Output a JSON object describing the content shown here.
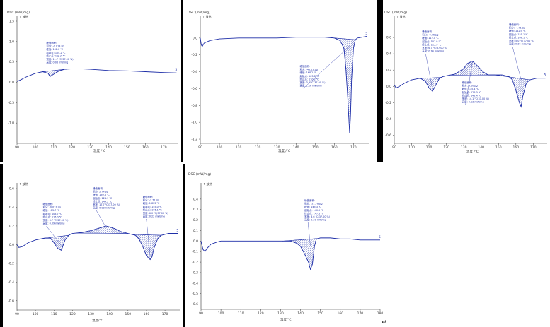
{
  "colors": {
    "curve": "#1f2fa8",
    "hatch": "#1f2fa8",
    "annotation": "#1f2fa8",
    "axis": "#333333",
    "frame": "#000000"
  },
  "footer": {
    "return_mark": "↵"
  },
  "chart_data": [
    {
      "type": "line",
      "title": "DSC (mW/mg)",
      "xlabel": "温度 /℃",
      "xlim": [
        90,
        178
      ],
      "ylim": [
        -1.5,
        1.5
      ],
      "xticks": [
        "90",
        "100",
        "110",
        "120",
        "130",
        "140",
        "150",
        "160",
        "170"
      ],
      "yticks": [
        "1.5",
        "1.0",
        "0.5",
        "0.0",
        "-0.5",
        "-1.0"
      ],
      "exo_label": "↑ 放热",
      "curve_label": "5",
      "series": [
        {
          "x": [
            90,
            92,
            95,
            100,
            104,
            107,
            108,
            110,
            113,
            116,
            120,
            125,
            130,
            140,
            150,
            160,
            170,
            177
          ],
          "y": [
            0.02,
            0.06,
            0.13,
            0.22,
            0.26,
            0.22,
            0.14,
            0.2,
            0.28,
            0.32,
            0.33,
            0.33,
            0.32,
            0.29,
            0.28,
            0.26,
            0.24,
            0.23
          ]
        }
      ],
      "peaks": [
        {
          "x0": 104,
          "x1": 117,
          "tip_x": 108
        }
      ],
      "annotations": [
        [
          "峰值面积:",
          "积分: -0.013 J/g",
          "峰值: 108.0 ℃",
          "起始点: 104.2 ℃",
          "终止点: 116.0 ℃",
          "宽度: 11.7 ℃(37.00 %)",
          "高度: 0.08 mW/mg"
        ]
      ],
      "annotation_x": [
        106
      ]
    },
    {
      "type": "line",
      "title": "DSC (mW/mg)",
      "xlabel": "温度 /℃",
      "xlim": [
        90,
        178
      ],
      "ylim": [
        -1.25,
        0.2
      ],
      "xticks": [
        "90",
        "100",
        "110",
        "120",
        "130",
        "140",
        "150",
        "160",
        "170"
      ],
      "yticks": [
        "0.0",
        "-0.2",
        "-0.4",
        "-0.6",
        "-0.8",
        "-1.0",
        "-1.2"
      ],
      "exo_label": "↑ 放热",
      "curve_label": "5",
      "series": [
        {
          "x": [
            90,
            90.5,
            91,
            92,
            95,
            100,
            110,
            120,
            130,
            140,
            150,
            155,
            160,
            163,
            165,
            166,
            167,
            168,
            168.5,
            169,
            170,
            171,
            172,
            177
          ],
          "y": [
            0.0,
            -0.08,
            -0.1,
            -0.06,
            -0.03,
            -0.01,
            0.0,
            0.0,
            0.0,
            0.01,
            0.01,
            0.01,
            0.0,
            -0.03,
            -0.12,
            -0.35,
            -0.7,
            -1.13,
            -0.9,
            -0.5,
            -0.12,
            -0.02,
            0.0,
            0.02
          ]
        }
      ],
      "peaks": [
        {
          "x0": 158,
          "x1": 171,
          "tip_x": 168
        }
      ],
      "annotations": [
        [
          "峰值面积:",
          "积分: -46.13 J/g",
          "峰值: 168.2 ℃",
          "起始点: 163.8 ℃",
          "终止点: 170.2 ℃",
          "宽度: 3.6 ℃(37.00 %)",
          "高度: 1.16 mW/mg"
        ]
      ],
      "annotation_x": [
        142
      ]
    },
    {
      "type": "line",
      "title": "DSC (mW/mg)",
      "xlabel": "温度 /℃",
      "xlim": [
        90,
        178
      ],
      "ylim": [
        -0.7,
        0.8
      ],
      "xticks": [
        "90",
        "100",
        "110",
        "120",
        "130",
        "140",
        "150",
        "160",
        "170"
      ],
      "yticks": [
        "0.6",
        "0.4",
        "0.2",
        "0.0",
        "-0.2",
        "-0.4",
        "-0.6"
      ],
      "exo_label": "↑ 放热",
      "curve_label": "5",
      "series": [
        {
          "x": [
            90,
            91,
            93,
            96,
            100,
            105,
            108,
            110,
            112,
            114,
            116,
            118,
            120,
            125,
            130,
            132,
            135,
            138,
            141,
            144,
            148,
            152,
            156,
            158,
            160,
            162,
            163,
            164,
            166,
            168,
            172,
            177
          ],
          "y": [
            0.02,
            -0.02,
            0.0,
            0.04,
            0.08,
            0.1,
            0.06,
            -0.02,
            -0.06,
            0.02,
            0.1,
            0.12,
            0.13,
            0.15,
            0.22,
            0.28,
            0.31,
            0.25,
            0.18,
            0.14,
            0.14,
            0.14,
            0.12,
            0.08,
            -0.05,
            -0.2,
            -0.25,
            -0.12,
            0.04,
            0.08,
            0.1,
            0.1
          ]
        }
      ],
      "peaks": [
        {
          "x0": 104,
          "x1": 117,
          "tip_x": 112
        },
        {
          "x0": 122,
          "x1": 148,
          "tip_x": 135
        },
        {
          "x0": 148,
          "x1": 168,
          "tip_x": 163
        }
      ],
      "annotations": [
        [
          "峰值面积:",
          "积分: -0.06 J/g",
          "峰值: 112.0 ℃",
          "起始点: 107.9 ℃",
          "终止点: 115.9 ℃",
          "宽度: 6.7 ℃(37.00 %)",
          "高度: 0.14 mW/mg"
        ],
        [
          "峰值面积:",
          "积分: 4.10 J/g",
          "峰值: 135.4 ℃",
          "起始点: 125.0 ℃",
          "终止点: 142.4 ℃",
          "宽度: 14.1 ℃(37.00 %)",
          "高度: 0.13 mW/mg"
        ],
        [
          "峰值面积:",
          "积分: -4.71 J/g",
          "峰值: 162.9 ℃",
          "起始点: 155.1 ℃",
          "终止点: 166.1 ℃",
          "宽度: 5.0 ℃(37.00 %)",
          "高度: 0.36 mW/mg"
        ]
      ],
      "annotation_x": [
        106,
        129,
        156
      ]
    },
    {
      "type": "line",
      "title": "",
      "xlabel": "温度/℃",
      "xlim": [
        90,
        178
      ],
      "ylim": [
        -0.7,
        0.6
      ],
      "xticks": [
        "90",
        "100",
        "110",
        "120",
        "130",
        "140",
        "150",
        "160",
        "170"
      ],
      "yticks": [
        "0.6",
        "0.4",
        "0.2",
        "0.0",
        "-0.2",
        "-0.4",
        "-0.6"
      ],
      "exo_label": "↑ 放热",
      "curve_label": "5",
      "series": [
        {
          "x": [
            90,
            91,
            93,
            96,
            100,
            105,
            108,
            110,
            112,
            114,
            116,
            118,
            120,
            125,
            130,
            135,
            138,
            140,
            143,
            146,
            150,
            154,
            156,
            158,
            160,
            162,
            163,
            164,
            166,
            168,
            172,
            177
          ],
          "y": [
            0.0,
            -0.03,
            -0.02,
            0.02,
            0.05,
            0.07,
            0.07,
            0.02,
            -0.04,
            -0.06,
            0.05,
            0.1,
            0.12,
            0.13,
            0.15,
            0.18,
            0.2,
            0.19,
            0.17,
            0.14,
            0.12,
            0.1,
            0.06,
            -0.02,
            -0.12,
            -0.16,
            -0.13,
            -0.04,
            0.06,
            0.1,
            0.12,
            0.12
          ]
        }
      ],
      "peaks": [
        {
          "x0": 104,
          "x1": 118,
          "tip_x": 114
        },
        {
          "x0": 122,
          "x1": 150,
          "tip_x": 138
        },
        {
          "x0": 152,
          "x1": 168,
          "tip_x": 162
        }
      ],
      "annotations": [
        [
          "峰值面积:",
          "积分: -0.031 J/g",
          "峰值: 113.7 ℃",
          "起始点: 108.7 ℃",
          "终止点: 116.0 ℃",
          "宽度: 6.7 ℃(37.00 %)",
          "高度: 0.09 mW/mg"
        ],
        [
          "峰值面积:",
          "积分: 2.74 J/g",
          "峰值: 139.3 ℃",
          "起始点: 124.9 ℃",
          "终止点: 149.2 ℃",
          "宽度: 17.7 ℃(37.00 %)",
          "高度: 0.08 mW/mg"
        ],
        [
          "峰值面积:",
          "积分: -2.71 J/g",
          "峰值: 162.3 ℃",
          "起始点: 155.0 ℃",
          "终止点: 166.1 ℃",
          "宽度: 6.0 ℃(37.00 %)",
          "高度: 0.22 mW/mg"
        ]
      ],
      "annotation_x": [
        104,
        131,
        158
      ]
    },
    {
      "type": "line",
      "title": "DSC (mW/mg)",
      "xlabel": "温度/℃",
      "xlim": [
        90,
        180
      ],
      "ylim": [
        -0.65,
        0.5
      ],
      "xticks": [
        "90",
        "100",
        "110",
        "120",
        "130",
        "140",
        "150",
        "160",
        "170",
        "180"
      ],
      "yticks": [
        "0.4",
        "0.3",
        "0.2",
        "0.1",
        "0.0",
        "-0.1",
        "-0.2",
        "-0.3",
        "-0.4",
        "-0.5",
        "-0.6"
      ],
      "exo_label": "↑ 放热",
      "curve_label": "5",
      "series": [
        {
          "x": [
            90,
            91,
            92,
            93,
            95,
            98,
            100,
            105,
            110,
            120,
            130,
            135,
            138,
            140,
            142,
            144,
            145,
            146,
            147,
            148,
            150,
            155,
            160,
            165,
            170,
            175,
            180
          ],
          "y": [
            0.0,
            -0.08,
            -0.1,
            -0.07,
            -0.03,
            -0.01,
            0.0,
            0.0,
            0.0,
            0.0,
            0.0,
            0.0,
            -0.02,
            -0.05,
            -0.12,
            -0.2,
            -0.27,
            -0.22,
            -0.05,
            0.02,
            0.03,
            0.03,
            0.02,
            0.02,
            0.01,
            0.01,
            0.01
          ]
        }
      ],
      "peaks": [
        {
          "x0": 131,
          "x1": 149,
          "tip_x": 145
        }
      ],
      "annotations": [
        [
          "峰值面积:",
          "积分: -21.78 J/g",
          "峰值: 145.3 ℃",
          "起始点: 140.2 ℃",
          "终止点: 147.5 ℃",
          "宽度: 3.6 ℃(37.00 %)",
          "高度: 0.30 mW/mg"
        ]
      ],
      "annotation_x": [
        142
      ]
    }
  ]
}
